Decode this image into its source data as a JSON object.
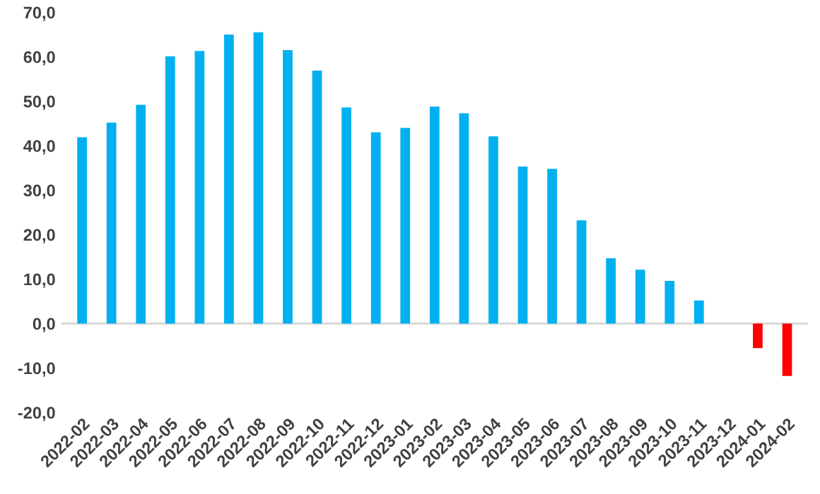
{
  "chart_data": {
    "type": "bar",
    "categories": [
      "2022-02",
      "2022-03",
      "2022-04",
      "2022-05",
      "2022-06",
      "2022-07",
      "2022-08",
      "2022-09",
      "2022-10",
      "2022-11",
      "2022-12",
      "2023-01",
      "2023-02",
      "2023-03",
      "2023-04",
      "2023-05",
      "2023-06",
      "2023-07",
      "2023-08",
      "2023-09",
      "2023-10",
      "2023-11",
      "2023-12",
      "2024-01",
      "2024-02"
    ],
    "values": [
      41.9,
      45.2,
      49.2,
      60.1,
      61.3,
      65.0,
      65.5,
      61.5,
      56.9,
      48.6,
      43.0,
      44.0,
      48.8,
      47.3,
      42.1,
      35.3,
      34.8,
      23.2,
      14.7,
      12.1,
      9.6,
      5.2,
      null,
      -5.5,
      -11.8
    ],
    "colors": [
      "#00b0f0",
      "#00b0f0",
      "#00b0f0",
      "#00b0f0",
      "#00b0f0",
      "#00b0f0",
      "#00b0f0",
      "#00b0f0",
      "#00b0f0",
      "#00b0f0",
      "#00b0f0",
      "#00b0f0",
      "#00b0f0",
      "#00b0f0",
      "#00b0f0",
      "#00b0f0",
      "#00b0f0",
      "#00b0f0",
      "#00b0f0",
      "#00b0f0",
      "#00b0f0",
      "#00b0f0",
      "#00b0f0",
      "#ff0000",
      "#ff0000"
    ],
    "ylim": [
      -20,
      70
    ],
    "yticks": [
      {
        "value": -20,
        "label": "-20,0"
      },
      {
        "value": -10,
        "label": "-10,0"
      },
      {
        "value": 0,
        "label": "0,0"
      },
      {
        "value": 10,
        "label": "10,0"
      },
      {
        "value": 20,
        "label": "20,0"
      },
      {
        "value": 30,
        "label": "30,0"
      },
      {
        "value": 40,
        "label": "40,0"
      },
      {
        "value": 50,
        "label": "50,0"
      },
      {
        "value": 60,
        "label": "60,0"
      },
      {
        "value": 70,
        "label": "70,0"
      }
    ],
    "legend": false
  }
}
